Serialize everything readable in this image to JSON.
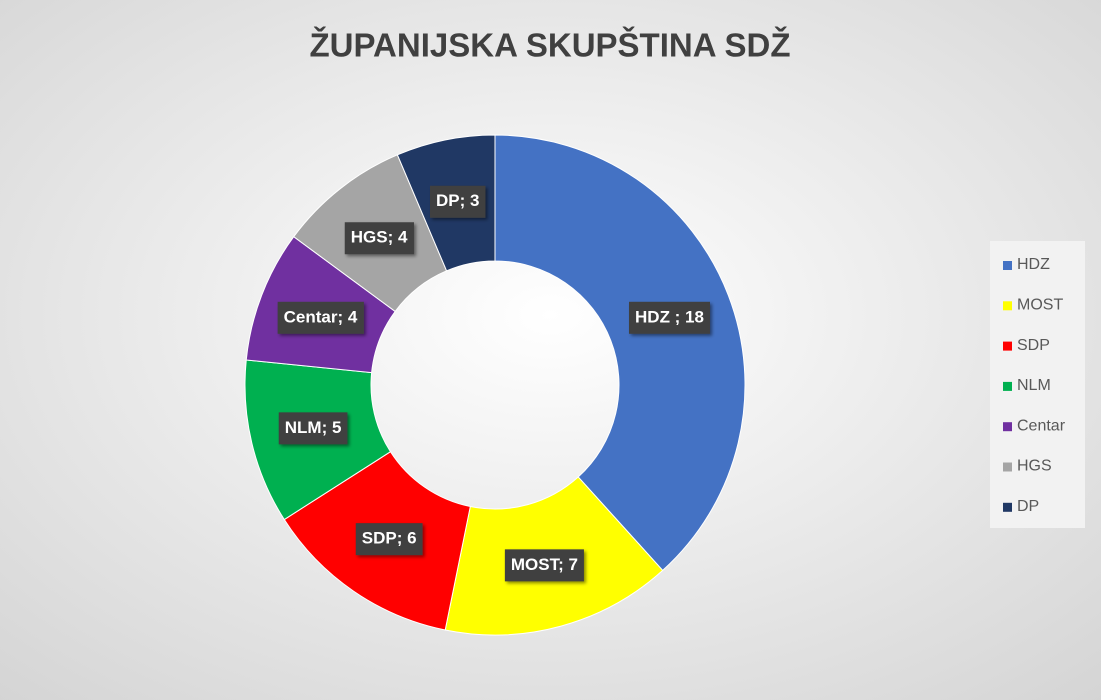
{
  "chart_data": {
    "type": "donut",
    "title": "ŽUPANIJSKA SKUPŠTINA SDŽ",
    "categories": [
      "HDZ",
      "MOST",
      "SDP",
      "NLM",
      "Centar",
      "HGS",
      "DP"
    ],
    "values": [
      18,
      7,
      6,
      5,
      4,
      4,
      3
    ],
    "value_labels": [
      "HDZ ; 18",
      "MOST; 7",
      "SDP; 6",
      "NLM; 5",
      "Centar; 4",
      "HGS; 4",
      "DP; 3"
    ],
    "colors": [
      "#4472c4",
      "#ffff00",
      "#ff0000",
      "#00b050",
      "#7030a0",
      "#a5a5a5",
      "#203864"
    ],
    "legend": "right"
  }
}
